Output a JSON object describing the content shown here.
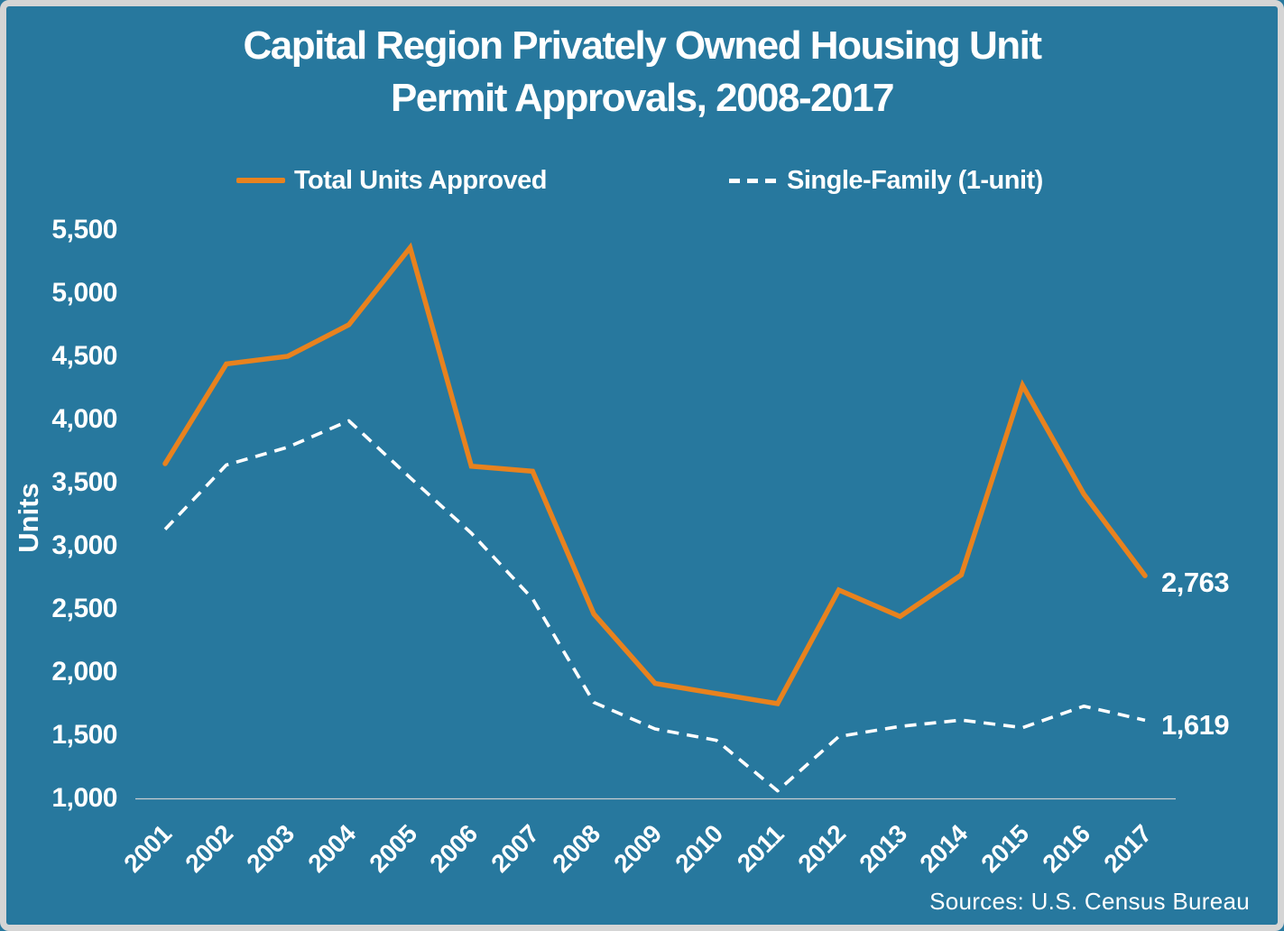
{
  "window": {
    "background_color": "#27789E",
    "frame_color": "#D5D5D5"
  },
  "title": {
    "line1": "Capital Region Privately Owned Housing Unit",
    "line2": "Permit Approvals, 2008-2017"
  },
  "legend": {
    "items": [
      {
        "label": "Total Units Approved",
        "marker": "solid-line",
        "color": "#E8821E"
      },
      {
        "label": "Single-Family (1-unit)",
        "marker": "dashed-line",
        "color": "#FFFFFF"
      }
    ]
  },
  "y_axis": {
    "title": "Units",
    "tick_labels": [
      "5,500",
      "5,000",
      "4,500",
      "4,000",
      "3,500",
      "3,000",
      "2,500",
      "2,000",
      "1,500",
      "1,000"
    ]
  },
  "x_axis": {
    "tick_labels": [
      "2001",
      "2002",
      "2003",
      "2004",
      "2005",
      "2006",
      "2007",
      "2008",
      "2009",
      "2010",
      "2011",
      "2012",
      "2013",
      "2014",
      "2015",
      "2016",
      "2017"
    ]
  },
  "annotations": {
    "total_end_label": "2,763",
    "single_family_end_label": "1,619"
  },
  "source": {
    "text": "Sources: U.S. Census Bureau"
  },
  "chart_data": {
    "type": "line",
    "title": "Capital Region Privately Owned Housing Unit Permit Approvals, 2008-2017",
    "categories": [
      2001,
      2002,
      2003,
      2004,
      2005,
      2006,
      2007,
      2008,
      2009,
      2010,
      2011,
      2012,
      2013,
      2014,
      2015,
      2016,
      2017
    ],
    "series": [
      {
        "name": "Total Units Approved",
        "style": "solid",
        "color": "#E8821E",
        "values": [
          3650,
          4440,
          4500,
          4750,
          5360,
          3630,
          3590,
          2460,
          1910,
          1830,
          1750,
          2650,
          2440,
          2770,
          4270,
          3410,
          2763
        ]
      },
      {
        "name": "Single-Family (1-unit)",
        "style": "dashed",
        "color": "#FFFFFF",
        "values": [
          3130,
          3640,
          3780,
          3990,
          3540,
          3100,
          2580,
          1760,
          1550,
          1460,
          1060,
          1490,
          1570,
          1620,
          1560,
          1730,
          1619
        ]
      }
    ],
    "xlabel": "",
    "ylabel": "Units",
    "ylim": [
      1000,
      5500
    ],
    "y_tick_step": 500,
    "grid": false,
    "legend_position": "top"
  }
}
